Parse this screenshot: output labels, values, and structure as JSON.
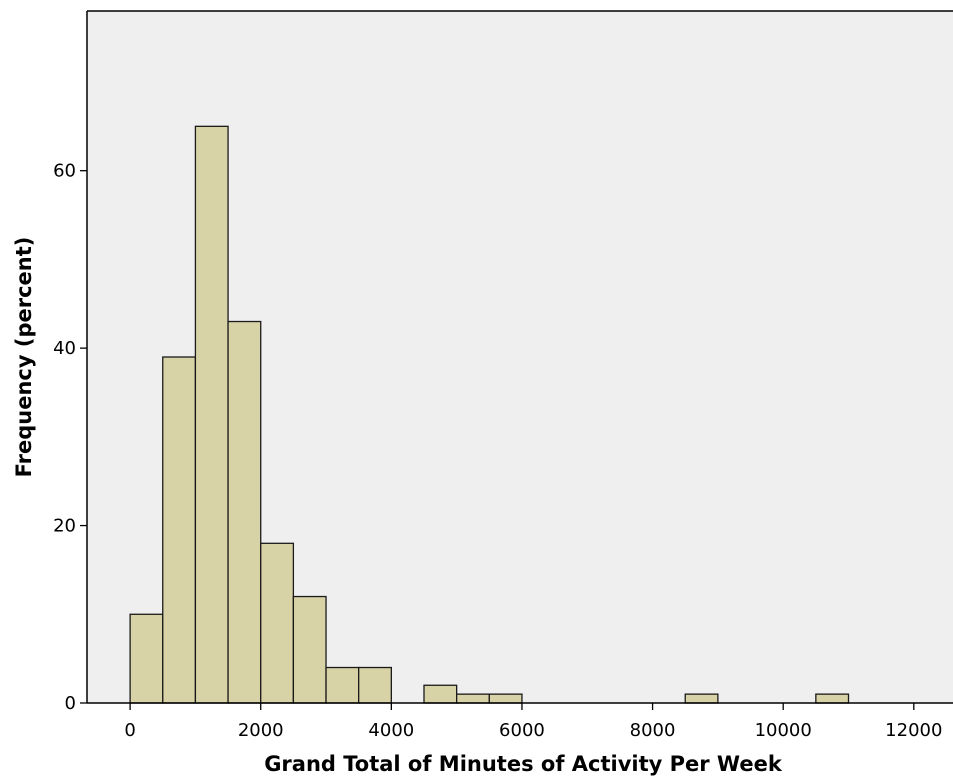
{
  "chart_data": {
    "type": "bar",
    "title": "",
    "xlabel": "Grand Total of Minutes of Activity Per Week",
    "ylabel": "Frequency (percent)",
    "bin_width": 500,
    "bins": [
      {
        "start": 0,
        "end": 500,
        "value": 10
      },
      {
        "start": 500,
        "end": 1000,
        "value": 39
      },
      {
        "start": 1000,
        "end": 1500,
        "value": 65
      },
      {
        "start": 1500,
        "end": 2000,
        "value": 43
      },
      {
        "start": 2000,
        "end": 2500,
        "value": 18
      },
      {
        "start": 2500,
        "end": 3000,
        "value": 12
      },
      {
        "start": 3000,
        "end": 3500,
        "value": 4
      },
      {
        "start": 3500,
        "end": 4000,
        "value": 4
      },
      {
        "start": 4500,
        "end": 5000,
        "value": 2
      },
      {
        "start": 5000,
        "end": 5500,
        "value": 1
      },
      {
        "start": 5500,
        "end": 6000,
        "value": 1
      },
      {
        "start": 8500,
        "end": 9000,
        "value": 1
      },
      {
        "start": 10500,
        "end": 11000,
        "value": 1
      }
    ],
    "xlim": [
      -660,
      12600
    ],
    "ylim": [
      0,
      78
    ],
    "x_ticks": [
      0,
      2000,
      4000,
      6000,
      8000,
      10000,
      12000
    ],
    "y_ticks": [
      0,
      20,
      40,
      60
    ],
    "grid": false,
    "colors": {
      "bar_fill": "#d8d3a6",
      "bar_stroke": "#1a1a1a",
      "plot_background": "#efefef"
    }
  }
}
